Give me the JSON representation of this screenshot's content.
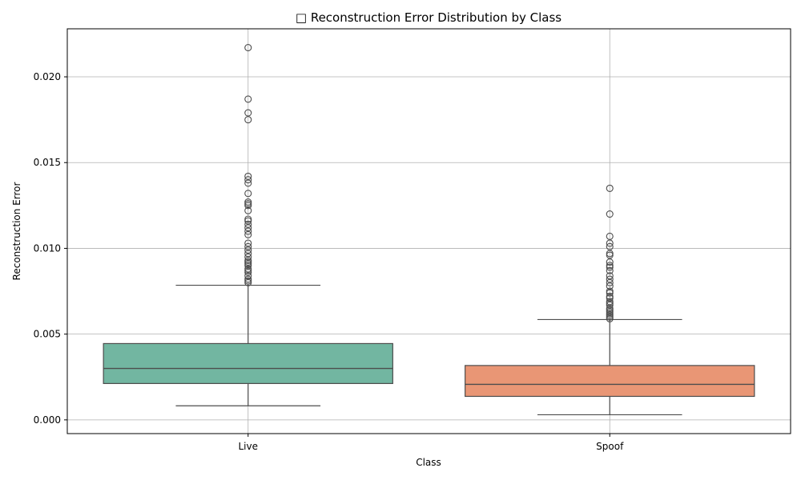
{
  "chart_data": {
    "type": "box",
    "title": "□ Reconstruction Error Distribution by Class",
    "xlabel": "Class",
    "ylabel": "Reconstruction Error",
    "ylim": [
      -0.0008,
      0.0228
    ],
    "yticks": [
      0.0,
      0.005,
      0.01,
      0.015,
      0.02
    ],
    "ytick_labels": [
      "0.000",
      "0.005",
      "0.010",
      "0.015",
      "0.020"
    ],
    "grid": true,
    "categories": [
      "Live",
      "Spoof"
    ],
    "boxes": [
      {
        "name": "Live",
        "color": "#72b6a1",
        "whisker_low": 0.00082,
        "q1": 0.00212,
        "median": 0.003,
        "q3": 0.00445,
        "whisker_high": 0.00785,
        "outliers": [
          0.0217,
          0.0187,
          0.0179,
          0.0175,
          0.0142,
          0.014,
          0.0138,
          0.0132,
          0.0127,
          0.0126,
          0.0125,
          0.0122,
          0.0117,
          0.0116,
          0.0114,
          0.0112,
          0.011,
          0.0108,
          0.0103,
          0.0101,
          0.0099,
          0.0097,
          0.0095,
          0.0093,
          0.0092,
          0.0091,
          0.009,
          0.0088,
          0.0087,
          0.0086,
          0.0084,
          0.0082,
          0.0081,
          0.008
        ]
      },
      {
        "name": "Spoof",
        "color": "#e99675",
        "whisker_low": 0.0003,
        "q1": 0.00137,
        "median": 0.00207,
        "q3": 0.00317,
        "whisker_high": 0.00585,
        "outliers": [
          0.0135,
          0.012,
          0.0107,
          0.0103,
          0.0101,
          0.0097,
          0.0096,
          0.0092,
          0.009,
          0.0089,
          0.0087,
          0.0084,
          0.0082,
          0.008,
          0.0078,
          0.0075,
          0.0074,
          0.0072,
          0.0071,
          0.0069,
          0.0068,
          0.0067,
          0.0065,
          0.0064,
          0.0063,
          0.0062,
          0.0061,
          0.006,
          0.0059
        ]
      }
    ]
  }
}
